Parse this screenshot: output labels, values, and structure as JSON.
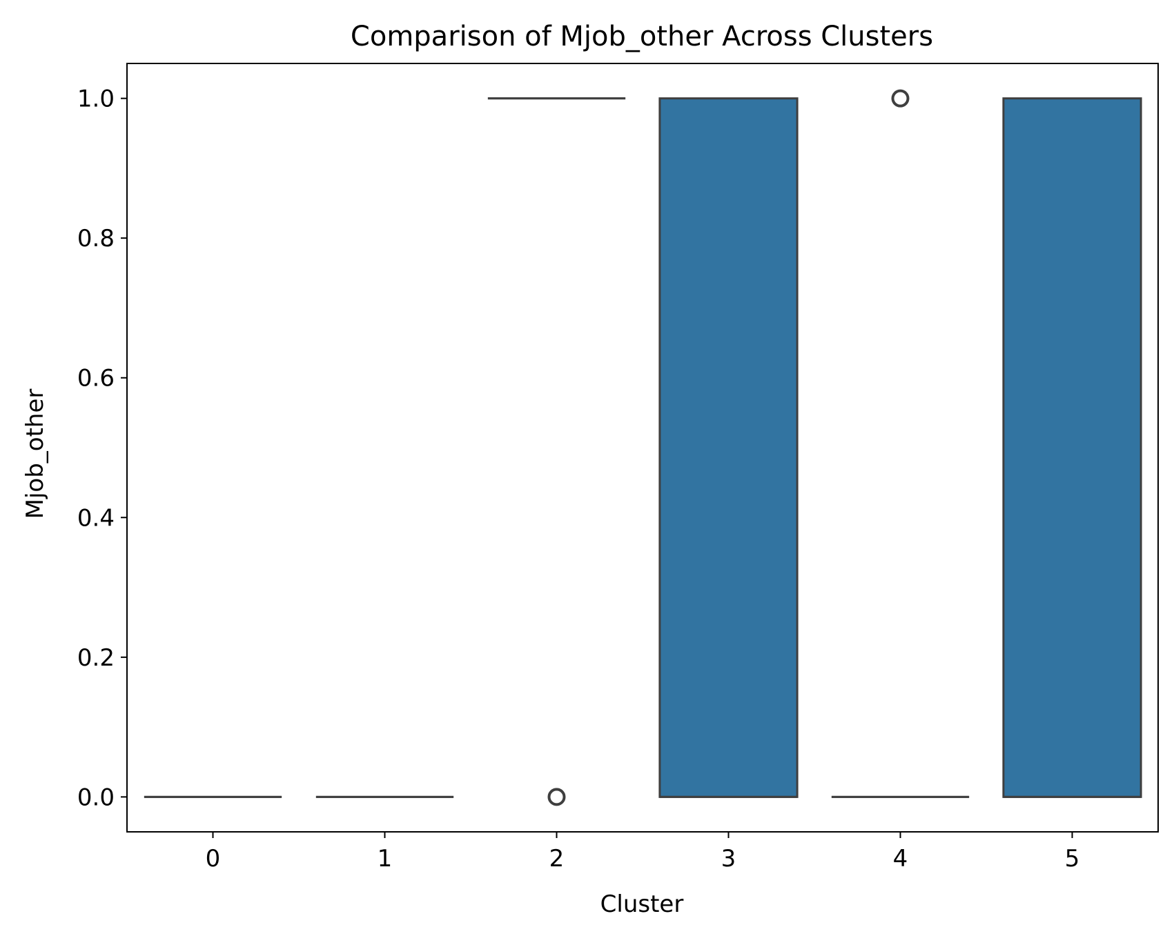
{
  "chart_data": {
    "type": "box",
    "title": "Comparison of Mjob_other Across Clusters",
    "xlabel": "Cluster",
    "ylabel": "Mjob_other",
    "categories": [
      "0",
      "1",
      "2",
      "3",
      "4",
      "5"
    ],
    "ylim": [
      -0.05,
      1.05
    ],
    "yticks": [
      "0.0",
      "0.2",
      "0.4",
      "0.6",
      "0.8",
      "1.0"
    ],
    "boxes": [
      {
        "cluster": "0",
        "q1": 0,
        "median": 0,
        "q3": 0,
        "whisker_low": 0,
        "whisker_high": 0,
        "outliers": []
      },
      {
        "cluster": "1",
        "q1": 0,
        "median": 0,
        "q3": 0,
        "whisker_low": 0,
        "whisker_high": 0,
        "outliers": []
      },
      {
        "cluster": "2",
        "q1": 1,
        "median": 1,
        "q3": 1,
        "whisker_low": 1,
        "whisker_high": 1,
        "outliers": [
          0
        ]
      },
      {
        "cluster": "3",
        "q1": 0,
        "median": 0,
        "q3": 1,
        "whisker_low": 0,
        "whisker_high": 1,
        "outliers": []
      },
      {
        "cluster": "4",
        "q1": 0,
        "median": 0,
        "q3": 0,
        "whisker_low": 0,
        "whisker_high": 0,
        "outliers": [
          1
        ]
      },
      {
        "cluster": "5",
        "q1": 0,
        "median": 0,
        "q3": 1,
        "whisker_low": 0,
        "whisker_high": 1,
        "outliers": []
      }
    ],
    "grid": false,
    "legend": "none",
    "colors": {
      "box_fill": "#3274a1",
      "box_edge": "#3f3f3f"
    }
  }
}
